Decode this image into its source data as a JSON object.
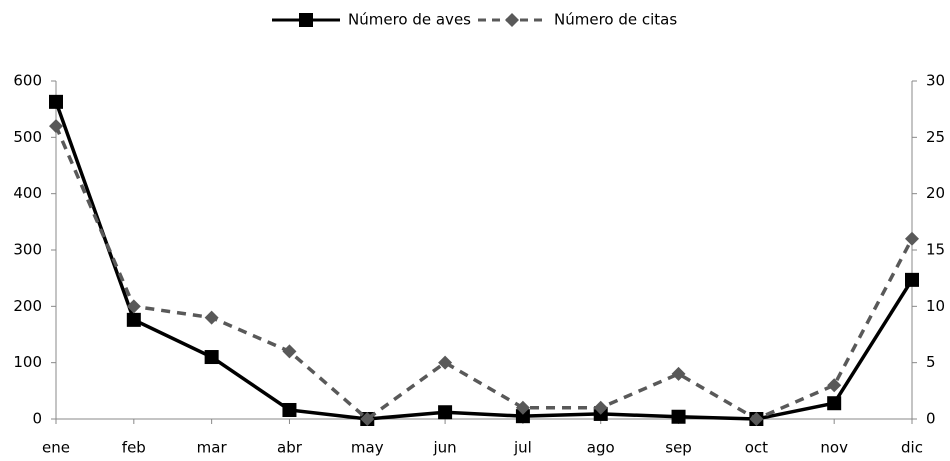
{
  "chart_data": {
    "type": "line",
    "categories": [
      "ene",
      "feb",
      "mar",
      "abr",
      "may",
      "jun",
      "jul",
      "ago",
      "sep",
      "oct",
      "nov",
      "dic"
    ],
    "series": [
      {
        "name": "Número de aves",
        "color": "#000000",
        "marker": "square",
        "dash": false,
        "values": [
          563,
          176,
          110,
          16,
          0,
          12,
          5,
          9,
          4,
          0,
          28,
          247
        ]
      },
      {
        "name": "Número de citas",
        "color": "#595959",
        "marker": "diamond",
        "dash": true,
        "axis": "y2",
        "values": [
          26,
          10,
          9,
          6,
          0,
          5,
          1,
          1,
          4,
          0,
          3,
          16
        ]
      }
    ],
    "ylim": [
      0,
      600
    ],
    "yticks": [
      0,
      100,
      200,
      300,
      400,
      500,
      600
    ],
    "y2lim": [
      0,
      30
    ],
    "y2ticks": [
      0,
      5,
      10,
      15,
      20,
      25,
      30
    ],
    "grid": false,
    "legend": "top"
  }
}
